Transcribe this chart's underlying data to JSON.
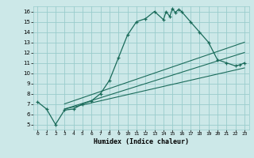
{
  "title": "",
  "xlabel": "Humidex (Indice chaleur)",
  "bg_color": "#cce8e8",
  "grid_color": "#99cccc",
  "line_color": "#1a6b5a",
  "xlim": [
    -0.5,
    23.5
  ],
  "ylim": [
    4.5,
    16.5
  ],
  "xticks": [
    0,
    1,
    2,
    3,
    4,
    5,
    6,
    7,
    8,
    9,
    10,
    11,
    12,
    13,
    14,
    15,
    16,
    17,
    18,
    19,
    20,
    21,
    22,
    23
  ],
  "yticks": [
    5,
    6,
    7,
    8,
    9,
    10,
    11,
    12,
    13,
    14,
    15,
    16
  ],
  "main_line_x": [
    0,
    1,
    2,
    3,
    4,
    5,
    6,
    7,
    8,
    9,
    10,
    11,
    12,
    13,
    14,
    14.3,
    14.7,
    15,
    15.3,
    15.7,
    16,
    17,
    18,
    19,
    20,
    21,
    22,
    22.5,
    23
  ],
  "main_line_y": [
    7.2,
    6.5,
    5.0,
    6.4,
    6.5,
    7.0,
    7.3,
    8.0,
    9.3,
    11.5,
    13.7,
    15.0,
    15.3,
    16.0,
    15.2,
    16.0,
    15.5,
    16.3,
    15.9,
    16.2,
    16.0,
    15.0,
    14.0,
    13.0,
    11.3,
    11.0,
    10.7,
    10.8,
    11.0
  ],
  "line2_x": [
    3,
    23
  ],
  "line2_y": [
    6.5,
    10.5
  ],
  "line3_x": [
    3,
    23
  ],
  "line3_y": [
    7.0,
    13.0
  ],
  "line4_x": [
    3,
    23
  ],
  "line4_y": [
    6.5,
    12.0
  ]
}
